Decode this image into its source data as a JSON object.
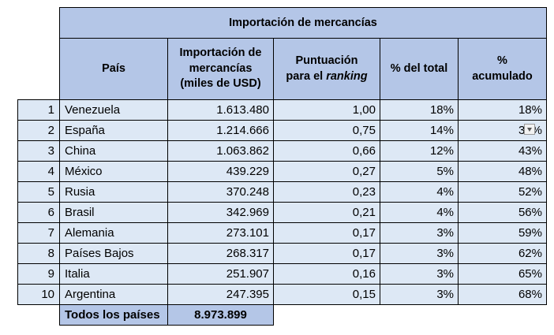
{
  "title": "Importación de mercancías",
  "headers": {
    "country": "País",
    "import_line1": "Importación de",
    "import_line2": "mercancías",
    "import_line3": "(miles de USD)",
    "score_line1": "Puntuación",
    "score_line2_prefix": "para el ",
    "score_line2_italic": "ranking",
    "pct_total": "% del total",
    "pct_cum_line1": "%",
    "pct_cum_line2": "acumulado"
  },
  "rows": [
    {
      "n": "1",
      "country": "Venezuela",
      "imports": "1.613.480",
      "score": "1,00",
      "pct": "18%",
      "cum": "18%"
    },
    {
      "n": "2",
      "country": "España",
      "imports": "1.214.666",
      "score": "0,75",
      "pct": "14%",
      "cum": "32%"
    },
    {
      "n": "3",
      "country": "China",
      "imports": "1.063.862",
      "score": "0,66",
      "pct": "12%",
      "cum": "43%"
    },
    {
      "n": "4",
      "country": "México",
      "imports": "439.229",
      "score": "0,27",
      "pct": "5%",
      "cum": "48%"
    },
    {
      "n": "5",
      "country": "Rusia",
      "imports": "370.248",
      "score": "0,23",
      "pct": "4%",
      "cum": "52%"
    },
    {
      "n": "6",
      "country": "Brasil",
      "imports": "342.969",
      "score": "0,21",
      "pct": "4%",
      "cum": "56%"
    },
    {
      "n": "7",
      "country": "Alemania",
      "imports": "273.101",
      "score": "0,17",
      "pct": "3%",
      "cum": "59%"
    },
    {
      "n": "8",
      "country": "Países Bajos",
      "imports": "268.317",
      "score": "0,17",
      "pct": "3%",
      "cum": "62%"
    },
    {
      "n": "9",
      "country": "Italia",
      "imports": "251.907",
      "score": "0,16",
      "pct": "3%",
      "cum": "65%"
    },
    {
      "n": "10",
      "country": "Argentina",
      "imports": "247.395",
      "score": "0,15",
      "pct": "3%",
      "cum": "68%"
    }
  ],
  "total": {
    "label": "Todos los países",
    "value": "8.973.899"
  },
  "colors": {
    "header_bg": "#b4c6e7",
    "row_bg": "#dde8f5"
  },
  "icons": {
    "cell_dropdown": "chevron-down-icon"
  }
}
